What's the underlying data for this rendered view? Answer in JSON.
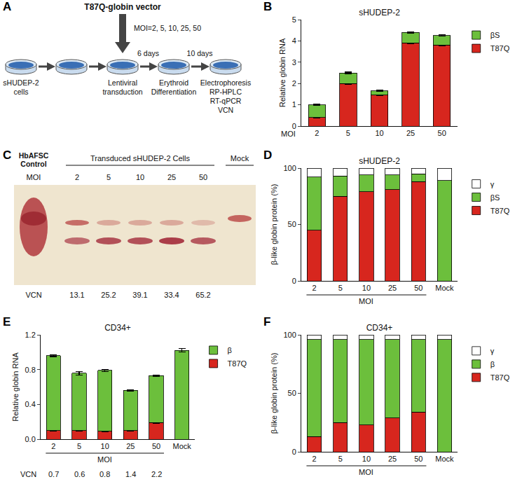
{
  "diagram": {
    "panel": "A",
    "vector": "T87Q-globin vector",
    "moi": "MOI=2, 5, 10, 25, 50",
    "dish_labels": [
      [
        "sHUDEP-2",
        "cells"
      ],
      null,
      [
        "Lentiviral",
        "transduction"
      ],
      [
        "Erythroid",
        "Differentiation"
      ],
      [
        "Electrophoresis",
        "RP-HPLC",
        "RT-qPCR",
        "VCN"
      ]
    ],
    "intervals": [
      null,
      null,
      "6 days",
      "10 days"
    ]
  },
  "gel": {
    "panel": "C",
    "control": [
      "HbAFSC",
      "Control"
    ],
    "group": "Transduced sHUDEP-2 Cells",
    "mock": "Mock",
    "moi_label": "MOI",
    "moi": [
      2,
      5,
      10,
      25,
      50
    ],
    "vcn_label": "VCN",
    "vcn": [
      13.1,
      25.2,
      39.1,
      33.4,
      65.2
    ]
  },
  "chart_data": [
    {
      "panel": "B",
      "type": "bar",
      "title": "sHUDEP-2",
      "y_label": "Relative globin RNA",
      "x_label": "MOI",
      "categories": [
        "2",
        "5",
        "10",
        "25",
        "50"
      ],
      "series": [
        {
          "name": "T87Q",
          "color": "#d7261e",
          "values": [
            0.4,
            2.0,
            1.45,
            3.9,
            3.8
          ],
          "errors": [
            0.02,
            0.03,
            0.03,
            0.03,
            0.03
          ]
        },
        {
          "name": "βS",
          "color": "#6cbf3c",
          "values": [
            0.6,
            0.5,
            0.2,
            0.5,
            0.45
          ],
          "errors": [
            0.02,
            0.03,
            0.03,
            0.03,
            0.03
          ]
        }
      ],
      "ylim": [
        0,
        5
      ],
      "yticks": [
        0,
        1,
        2,
        3,
        4,
        5
      ],
      "stacked": true,
      "grid": false,
      "legend": "right"
    },
    {
      "panel": "D",
      "type": "bar",
      "title": "sHUDEP-2",
      "y_label": "β-like globin protein (%)",
      "x_label": "MOI",
      "categories": [
        "2",
        "5",
        "10",
        "25",
        "50",
        "Mock"
      ],
      "series": [
        {
          "name": "T87Q",
          "color": "#d7261e",
          "values": [
            45,
            75,
            79,
            81,
            88,
            0
          ]
        },
        {
          "name": "βS",
          "color": "#6cbf3c",
          "values": [
            47,
            18,
            15,
            13,
            7,
            89
          ]
        },
        {
          "name": "γ",
          "color": "#ffffff",
          "values": [
            8,
            7,
            6,
            6,
            5,
            11
          ]
        }
      ],
      "ylim": [
        0,
        100
      ],
      "yticks": [
        0,
        50,
        100
      ],
      "stacked": true,
      "grid": false,
      "legend": "right"
    },
    {
      "panel": "E",
      "type": "bar",
      "title": "CD34+",
      "y_label": "Relative globin RNA",
      "x_label": "MOI",
      "categories": [
        "2",
        "5",
        "10",
        "25",
        "50",
        "Mock"
      ],
      "series": [
        {
          "name": "T87Q",
          "color": "#d7261e",
          "values": [
            0.1,
            0.1,
            0.09,
            0.1,
            0.19,
            0
          ],
          "errors": [
            0.005,
            0.005,
            0.005,
            0.005,
            0.008,
            0
          ]
        },
        {
          "name": "β",
          "color": "#6cbf3c",
          "values": [
            0.86,
            0.66,
            0.7,
            0.46,
            0.54,
            1.02
          ],
          "errors": [
            0.01,
            0.02,
            0.01,
            0.01,
            0.01,
            0.02
          ]
        }
      ],
      "vcn": {
        "label": "VCN",
        "values": [
          0.7,
          0.6,
          0.8,
          1.4,
          2.2
        ]
      },
      "ylim": [
        0,
        1.2
      ],
      "yticks": [
        {
          "value": 0,
          "label": "0.0"
        },
        0.4,
        0.8,
        1.2
      ],
      "stacked": true,
      "grid": false,
      "legend": "right"
    },
    {
      "panel": "F",
      "type": "bar",
      "title": "CD34+",
      "y_label": "β-like globin protein (%)",
      "x_label": "MOI",
      "categories": [
        "2",
        "5",
        "10",
        "25",
        "50",
        "Mock"
      ],
      "series": [
        {
          "name": "T87Q",
          "color": "#d7261e",
          "values": [
            13,
            25,
            23,
            29,
            34,
            0
          ]
        },
        {
          "name": "β",
          "color": "#6cbf3c",
          "values": [
            83,
            71,
            73,
            67,
            62,
            96
          ]
        },
        {
          "name": "γ",
          "color": "#ffffff",
          "values": [
            4,
            4,
            4,
            4,
            4,
            4
          ]
        }
      ],
      "ylim": [
        0,
        100
      ],
      "yticks": [
        0,
        50,
        100
      ],
      "stacked": true,
      "grid": false,
      "legend": "right"
    }
  ]
}
